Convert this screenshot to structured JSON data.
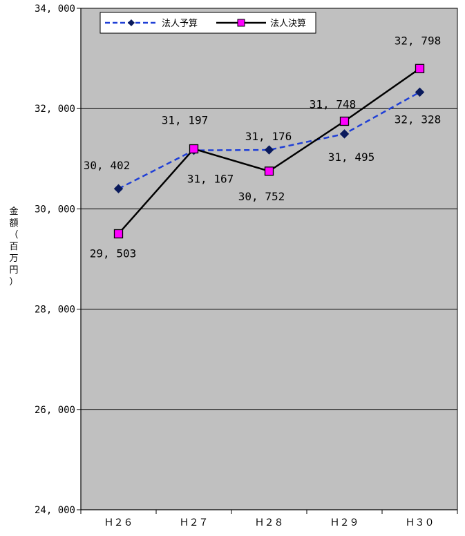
{
  "chart_data": {
    "type": "line",
    "categories": [
      "Ｈ２６",
      "Ｈ２７",
      "Ｈ２８",
      "Ｈ２９",
      "Ｈ３０"
    ],
    "series": [
      {
        "name": "法人予算",
        "values": [
          30402,
          31167,
          31176,
          31495,
          32328
        ],
        "labels": [
          "30, 402",
          "31, 167",
          "31, 176",
          "31, 495",
          "32, 328"
        ],
        "color": "#1f3fd6",
        "marker_color": "#0a1a5c",
        "style": "dashed",
        "marker": "diamond"
      },
      {
        "name": "法人決算",
        "values": [
          29503,
          31197,
          30752,
          31748,
          32798
        ],
        "labels": [
          "29, 503",
          "31, 197",
          "30, 752",
          "31, 748",
          "32, 798"
        ],
        "color": "#000000",
        "marker_color": "#ff00ff",
        "style": "solid",
        "marker": "square"
      }
    ],
    "ylabel": "金額（百万円）",
    "ylim": [
      24000,
      34000
    ],
    "yticks": [
      24000,
      26000,
      28000,
      30000,
      32000,
      34000
    ],
    "ytick_labels": [
      "24, 000",
      "26, 000",
      "28, 000",
      "30, 000",
      "32, 000",
      "34, 000"
    ],
    "grid": true,
    "legend_position": "top-left",
    "plot_background": "#c0c0c0"
  }
}
